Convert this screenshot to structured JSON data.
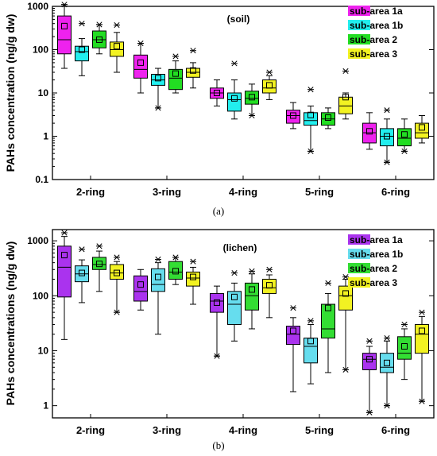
{
  "colors": {
    "soil": [
      "#ee22ee",
      "#22eeee",
      "#22dd22",
      "#f2f222"
    ],
    "lichen": [
      "#aa33ee",
      "#66ddee",
      "#33dd33",
      "#f2f222"
    ]
  },
  "chart_data": [
    {
      "type": "box",
      "panel_label": "(a)",
      "annotation": "(soil)",
      "ylabel": "PAHs concentration (ng/g dw)",
      "yscale": "log",
      "ylim": [
        0.1,
        1000
      ],
      "yticks": [
        "0.1",
        "1",
        "10",
        "100",
        "1000"
      ],
      "categories": [
        "2-ring",
        "3-ring",
        "4-ring",
        "5-ring",
        "6-ring"
      ],
      "legend_position": "top-right",
      "series": [
        {
          "name": "sub-area 1a",
          "boxes": [
            {
              "min": 37,
              "q1": 80,
              "median": 170,
              "q3": 600,
              "max": 1100,
              "mean": 350,
              "lo_outlier": null,
              "hi_outlier": 1100
            },
            {
              "min": 10,
              "q1": 22,
              "median": 35,
              "q3": 75,
              "max": 140,
              "mean": 50,
              "lo_outlier": null,
              "hi_outlier": 140
            },
            {
              "min": 5,
              "q1": 7.5,
              "median": 10,
              "q3": 13,
              "max": 20,
              "mean": 10,
              "lo_outlier": null,
              "hi_outlier": null
            },
            {
              "min": 1.5,
              "q1": 2,
              "median": 3,
              "q3": 4,
              "max": 6,
              "mean": 3,
              "lo_outlier": null,
              "hi_outlier": null
            },
            {
              "min": 0.5,
              "q1": 0.7,
              "median": 1.2,
              "q3": 2,
              "max": 3.5,
              "mean": 1.3,
              "lo_outlier": null,
              "hi_outlier": null
            }
          ]
        },
        {
          "name": "sub-area 1b",
          "boxes": [
            {
              "min": 25,
              "q1": 55,
              "median": 90,
              "q3": 120,
              "max": 180,
              "mean": 100,
              "lo_outlier": null,
              "hi_outlier": 400
            },
            {
              "min": 4.5,
              "q1": 15,
              "median": 20,
              "q3": 27,
              "max": 37,
              "mean": 22,
              "lo_outlier": 4.5,
              "hi_outlier": null
            },
            {
              "min": 2.5,
              "q1": 3.8,
              "median": 7,
              "q3": 10,
              "max": 20,
              "mean": 7.5,
              "lo_outlier": null,
              "hi_outlier": 48
            },
            {
              "min": 0.45,
              "q1": 1.8,
              "median": 2.3,
              "q3": 3.5,
              "max": 5,
              "mean": 3.1,
              "lo_outlier": 0.45,
              "hi_outlier": 12
            },
            {
              "min": 0.25,
              "q1": 0.6,
              "median": 1,
              "q3": 1.5,
              "max": 2.5,
              "mean": 1,
              "lo_outlier": 0.25,
              "hi_outlier": 4
            }
          ]
        },
        {
          "name": "sub-area 2",
          "boxes": [
            {
              "min": 80,
              "q1": 110,
              "median": 170,
              "q3": 270,
              "max": 380,
              "mean": 170,
              "lo_outlier": null,
              "hi_outlier": 380
            },
            {
              "min": 10,
              "q1": 12,
              "median": 22,
              "q3": 35,
              "max": 55,
              "mean": 28,
              "lo_outlier": null,
              "hi_outlier": 70
            },
            {
              "min": 3,
              "q1": 5.5,
              "median": 7.5,
              "q3": 11,
              "max": 16,
              "mean": 8,
              "lo_outlier": 3,
              "hi_outlier": null
            },
            {
              "min": 1.5,
              "q1": 1.8,
              "median": 2.5,
              "q3": 3.5,
              "max": 4.5,
              "mean": 2.7,
              "lo_outlier": null,
              "hi_outlier": null
            },
            {
              "min": 0.45,
              "q1": 0.6,
              "median": 0.9,
              "q3": 1.5,
              "max": 2.5,
              "mean": 1.1,
              "lo_outlier": 0.45,
              "hi_outlier": null
            }
          ]
        },
        {
          "name": "sub-area 3",
          "boxes": [
            {
              "min": 30,
              "q1": 70,
              "median": 100,
              "q3": 150,
              "max": 250,
              "mean": 120,
              "lo_outlier": null,
              "hi_outlier": 370
            },
            {
              "min": 13,
              "q1": 23,
              "median": 30,
              "q3": 37,
              "max": 50,
              "mean": 33,
              "lo_outlier": null,
              "hi_outlier": 95
            },
            {
              "min": 7,
              "q1": 10,
              "median": 13,
              "q3": 20,
              "max": 25,
              "mean": 15,
              "lo_outlier": null,
              "hi_outlier": 30
            },
            {
              "min": 2.5,
              "q1": 3.3,
              "median": 5,
              "q3": 8,
              "max": 10,
              "mean": 8,
              "lo_outlier": null,
              "hi_outlier": 32
            },
            {
              "min": 0.7,
              "q1": 0.9,
              "median": 1.2,
              "q3": 2,
              "max": 3,
              "mean": 1.6,
              "lo_outlier": null,
              "hi_outlier": null
            }
          ]
        }
      ]
    },
    {
      "type": "box",
      "panel_label": "(b)",
      "annotation": "(lichen)",
      "ylabel": "PAHs concentrations (ng/g dw)",
      "yscale": "log",
      "ylim": [
        0.6,
        1600
      ],
      "yticks": [
        "1",
        "10",
        "100",
        "1000"
      ],
      "categories": [
        "2-ring",
        "3-ring",
        "4-ring",
        "5-ring",
        "6-ring"
      ],
      "legend_position": "top-right",
      "series": [
        {
          "name": "sub-area 1a",
          "boxes": [
            {
              "min": 16,
              "q1": 95,
              "median": 330,
              "q3": 800,
              "max": 1200,
              "mean": 550,
              "lo_outlier": null,
              "hi_outlier": 1400
            },
            {
              "min": 55,
              "q1": 80,
              "median": 120,
              "q3": 230,
              "max": 300,
              "mean": 160,
              "lo_outlier": null,
              "hi_outlier": null
            },
            {
              "min": 8,
              "q1": 50,
              "median": 80,
              "q3": 110,
              "max": 150,
              "mean": 75,
              "lo_outlier": 8,
              "hi_outlier": null
            },
            {
              "min": 1.8,
              "q1": 13,
              "median": 20,
              "q3": 28,
              "max": 40,
              "mean": 23,
              "lo_outlier": null,
              "hi_outlier": 60
            },
            {
              "min": 0.75,
              "q1": 4.5,
              "median": 7,
              "q3": 9,
              "max": 12,
              "mean": 7,
              "lo_outlier": 0.75,
              "hi_outlier": 15
            }
          ]
        },
        {
          "name": "sub-area 1b",
          "boxes": [
            {
              "min": 75,
              "q1": 180,
              "median": 250,
              "q3": 350,
              "max": 450,
              "mean": 260,
              "lo_outlier": null,
              "hi_outlier": 700
            },
            {
              "min": 20,
              "q1": 120,
              "median": 160,
              "q3": 310,
              "max": 400,
              "mean": 220,
              "lo_outlier": null,
              "hi_outlier": 460
            },
            {
              "min": 15,
              "q1": 30,
              "median": 70,
              "q3": 120,
              "max": 170,
              "mean": 95,
              "lo_outlier": null,
              "hi_outlier": 260
            },
            {
              "min": 2.5,
              "q1": 6,
              "median": 12,
              "q3": 17,
              "max": 30,
              "mean": 15,
              "lo_outlier": null,
              "hi_outlier": 35
            },
            {
              "min": 1,
              "q1": 4,
              "median": 5,
              "q3": 9,
              "max": 15,
              "mean": 6,
              "lo_outlier": 1,
              "hi_outlier": 17
            }
          ]
        },
        {
          "name": "sub-area 2",
          "boxes": [
            {
              "min": 120,
              "q1": 300,
              "median": 370,
              "q3": 500,
              "max": 650,
              "mean": 380,
              "lo_outlier": null,
              "hi_outlier": 800
            },
            {
              "min": 160,
              "q1": 200,
              "median": 270,
              "q3": 420,
              "max": 500,
              "mean": 280,
              "lo_outlier": null,
              "hi_outlier": 500
            },
            {
              "min": 25,
              "q1": 55,
              "median": 100,
              "q3": 170,
              "max": 250,
              "mean": 130,
              "lo_outlier": null,
              "hi_outlier": 280
            },
            {
              "min": 4,
              "q1": 17,
              "median": 25,
              "q3": 70,
              "max": 110,
              "mean": 60,
              "lo_outlier": null,
              "hi_outlier": 170
            },
            {
              "min": 3,
              "q1": 7,
              "median": 9,
              "q3": 18,
              "max": 25,
              "mean": 12,
              "lo_outlier": null,
              "hi_outlier": 30
            }
          ]
        },
        {
          "name": "sub-area 3",
          "boxes": [
            {
              "min": 50,
              "q1": 200,
              "median": 260,
              "q3": 370,
              "max": 420,
              "mean": 260,
              "lo_outlier": 50,
              "hi_outlier": 500
            },
            {
              "min": 70,
              "q1": 150,
              "median": 210,
              "q3": 270,
              "max": 330,
              "mean": 220,
              "lo_outlier": null,
              "hi_outlier": 420
            },
            {
              "min": 40,
              "q1": 110,
              "median": 140,
              "q3": 200,
              "max": 240,
              "mean": 155,
              "lo_outlier": null,
              "hi_outlier": 300
            },
            {
              "min": 4.5,
              "q1": 55,
              "median": 100,
              "q3": 150,
              "max": 200,
              "mean": 110,
              "lo_outlier": 4.5,
              "hi_outlier": 220
            },
            {
              "min": 1.2,
              "q1": 9,
              "median": 20,
              "q3": 30,
              "max": 42,
              "mean": 23,
              "lo_outlier": 1.2,
              "hi_outlier": 50
            }
          ]
        }
      ]
    }
  ]
}
